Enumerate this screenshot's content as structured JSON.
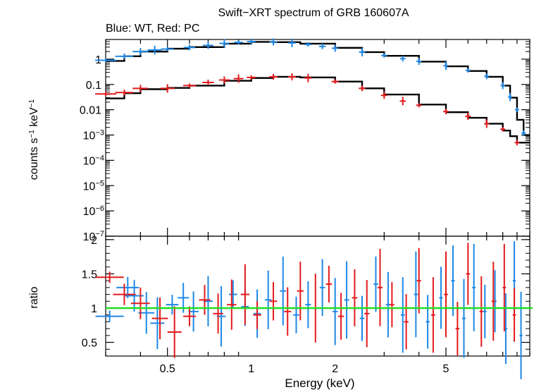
{
  "chart_data": [
    {
      "type": "scatter",
      "panel": "spectrum",
      "title": "Swift−XRT spectrum of GRB 160607A",
      "subtitle": "Blue: WT, Red: PC",
      "xlabel": "Energy (keV)",
      "ylabel_main": "counts s",
      "ylabel_sup1": "−1",
      "ylabel_mid": " keV",
      "ylabel_sup2": "−1",
      "xscale": "log",
      "yscale": "log",
      "xlim": [
        0.3,
        10
      ],
      "ylim": [
        1e-07,
        6
      ],
      "x_ticks": [
        0.5,
        1,
        2,
        5
      ],
      "x_tick_labels": [
        "0.5",
        "1",
        "2",
        "5"
      ],
      "y_ticks": [
        {
          "value": 1,
          "base": "1",
          "exp": ""
        },
        {
          "value": 0.1,
          "base": "0.1",
          "exp": ""
        },
        {
          "value": 0.01,
          "base": "0.01",
          "exp": ""
        },
        {
          "value": 0.001,
          "base": "10",
          "exp": "−3"
        },
        {
          "value": 0.0001,
          "base": "10",
          "exp": "−4"
        },
        {
          "value": 1e-05,
          "base": "10",
          "exp": "−5"
        },
        {
          "value": 1e-06,
          "base": "10",
          "exp": "−6"
        },
        {
          "value": 1e-07,
          "base": "10",
          "exp": "−7"
        }
      ],
      "series": [
        {
          "color": "#1e88e5",
          "x": [
            0.3,
            0.35,
            0.4,
            0.45,
            0.5,
            0.6,
            0.7,
            0.8,
            0.9,
            1.0,
            1.2,
            1.4,
            1.6,
            1.8,
            2.0,
            2.5,
            3.0,
            3.5,
            4.0,
            5.0,
            6.0,
            7.0,
            8.0,
            8.5,
            9.0,
            9.5
          ],
          "y": [
            0.9,
            1.3,
            2.0,
            2.3,
            2.5,
            2.9,
            3.5,
            4.2,
            4.6,
            5.0,
            4.8,
            4.4,
            3.8,
            3.2,
            2.7,
            1.9,
            1.4,
            1.05,
            0.82,
            0.55,
            0.36,
            0.21,
            0.09,
            0.032,
            0.01,
            0.0012
          ]
        },
        {
          "color": "#e41a1c",
          "x": [
            0.3,
            0.35,
            0.4,
            0.5,
            0.6,
            0.7,
            0.8,
            0.9,
            1.0,
            1.2,
            1.4,
            1.6,
            2.0,
            2.5,
            3.0,
            3.5,
            4.0,
            5.0,
            6.0,
            7.0,
            8.0,
            9.0
          ],
          "y": [
            0.042,
            0.048,
            0.07,
            0.07,
            0.09,
            0.12,
            0.15,
            0.17,
            0.19,
            0.2,
            0.2,
            0.18,
            0.13,
            0.07,
            0.037,
            0.022,
            0.015,
            0.0085,
            0.0055,
            0.0028,
            0.0017,
            0.0005
          ]
        }
      ],
      "model": [
        {
          "color": "#000000",
          "x": [
            0.3,
            0.35,
            0.4,
            0.5,
            0.6,
            0.8,
            1.0,
            1.2,
            1.5,
            2.0,
            2.5,
            3.0,
            4.0,
            5.0,
            6.0,
            7.0,
            8.0,
            8.5,
            9.0,
            9.5
          ],
          "y": [
            0.85,
            1.3,
            2.0,
            2.6,
            3.0,
            4.1,
            4.8,
            4.7,
            4.1,
            2.8,
            1.9,
            1.35,
            0.8,
            0.52,
            0.34,
            0.2,
            0.09,
            0.03,
            0.004,
            0.001
          ]
        },
        {
          "color": "#000000",
          "x": [
            0.3,
            0.35,
            0.4,
            0.5,
            0.6,
            0.8,
            1.0,
            1.2,
            1.5,
            2.0,
            2.5,
            3.0,
            4.0,
            5.0,
            6.0,
            7.0,
            8.0,
            8.5,
            9.0
          ],
          "y": [
            0.028,
            0.045,
            0.065,
            0.073,
            0.09,
            0.14,
            0.18,
            0.2,
            0.19,
            0.13,
            0.07,
            0.04,
            0.016,
            0.008,
            0.0048,
            0.0028,
            0.0015,
            0.0009,
            0.0005
          ]
        }
      ]
    },
    {
      "type": "scatter",
      "panel": "ratio",
      "ylabel": "ratio",
      "xlabel": "Energy (keV)",
      "xscale": "log",
      "xlim": [
        0.3,
        10
      ],
      "ylim": [
        0.3,
        2.05
      ],
      "y_ticks": [
        2,
        1.5,
        1,
        0.5
      ],
      "y_tick_labels": [
        "2",
        "1.5",
        "1",
        "0.5"
      ],
      "x_ticks": [
        0.5,
        1,
        2,
        5
      ],
      "x_tick_labels": [
        "0.5",
        "1",
        "2",
        "5"
      ],
      "reference_line": {
        "y": 1,
        "color": "#22dd22"
      },
      "series": [
        {
          "color": "#1e88e5",
          "x": [
            0.31,
            0.36,
            0.38,
            0.42,
            0.46,
            0.52,
            0.57,
            0.62,
            0.7,
            0.78,
            0.86,
            0.95,
            1.05,
            1.15,
            1.3,
            1.45,
            1.6,
            1.8,
            2.0,
            2.2,
            2.5,
            2.8,
            3.1,
            3.5,
            3.9,
            4.3,
            4.8,
            5.3,
            5.8,
            6.3,
            6.9,
            7.5,
            8.2,
            8.8,
            9.3
          ],
          "y": [
            0.88,
            1.3,
            1.18,
            0.93,
            0.78,
            1.05,
            1.15,
            0.95,
            1.1,
            0.88,
            1.2,
            1.02,
            0.92,
            1.12,
            1.25,
            0.9,
            1.05,
            1.3,
            0.95,
            1.12,
            0.85,
            1.35,
            1.05,
            0.9,
            1.2,
            0.8,
            1.15,
            1.4,
            0.85,
            1.3,
            0.95,
            1.1,
            0.7,
            1.4,
            0.6
          ]
        },
        {
          "color": "#e41a1c",
          "x": [
            0.31,
            0.35,
            0.4,
            0.47,
            0.53,
            0.6,
            0.68,
            0.76,
            0.85,
            0.95,
            1.05,
            1.2,
            1.35,
            1.5,
            1.7,
            1.9,
            2.1,
            2.35,
            2.6,
            2.9,
            3.2,
            3.6,
            4.0,
            4.5,
            5.0,
            5.5,
            6.0,
            6.7,
            7.4,
            8.1,
            8.8
          ],
          "y": [
            1.45,
            1.2,
            1.07,
            0.85,
            0.65,
            0.88,
            1.12,
            0.92,
            1.05,
            1.2,
            0.9,
            1.1,
            0.95,
            1.25,
            1.0,
            1.35,
            0.88,
            1.15,
            0.92,
            1.3,
            1.05,
            0.8,
            1.4,
            0.9,
            1.2,
            0.7,
            1.5,
            0.95,
            1.1,
            1.3,
            0.9
          ]
        }
      ]
    }
  ]
}
